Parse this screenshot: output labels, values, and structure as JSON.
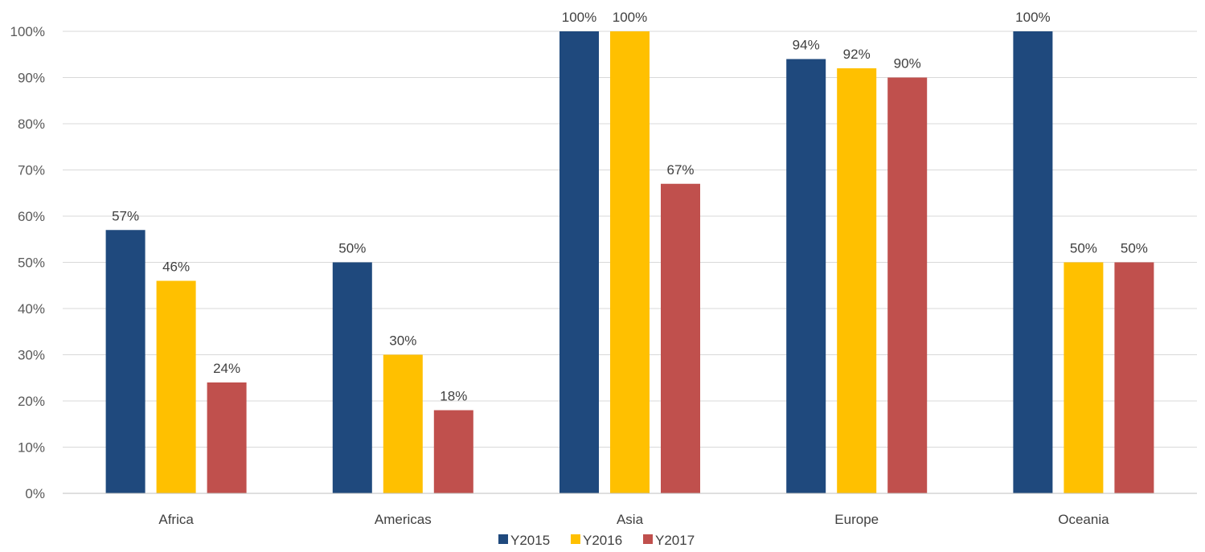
{
  "chart_data": {
    "type": "bar",
    "title": "",
    "xlabel": "",
    "ylabel": "",
    "categories": [
      "Africa",
      "Americas",
      "Asia",
      "Europe",
      "Oceania"
    ],
    "series": [
      {
        "name": "Y2015",
        "color": "#1F497D",
        "values": [
          57,
          50,
          100,
          94,
          100
        ]
      },
      {
        "name": "Y2016",
        "color": "#FFC000",
        "values": [
          46,
          30,
          100,
          92,
          50
        ]
      },
      {
        "name": "Y2017",
        "color": "#C0504D",
        "values": [
          24,
          18,
          67,
          90,
          50
        ]
      }
    ],
    "data_labels": [
      [
        "57%",
        "50%",
        "100%",
        "94%",
        "100%"
      ],
      [
        "46%",
        "30%",
        "100%",
        "92%",
        "50%"
      ],
      [
        "24%",
        "18%",
        "67%",
        "90%",
        "50%"
      ]
    ],
    "y_ticks": [
      0,
      10,
      20,
      30,
      40,
      50,
      60,
      70,
      80,
      90,
      100
    ],
    "y_tick_labels": [
      "0%",
      "10%",
      "20%",
      "30%",
      "40%",
      "50%",
      "60%",
      "70%",
      "80%",
      "90%",
      "100%"
    ],
    "ylim": [
      0,
      100
    ],
    "grid": true,
    "legend": "bottom",
    "gridline_color": "#D9D9D9"
  }
}
